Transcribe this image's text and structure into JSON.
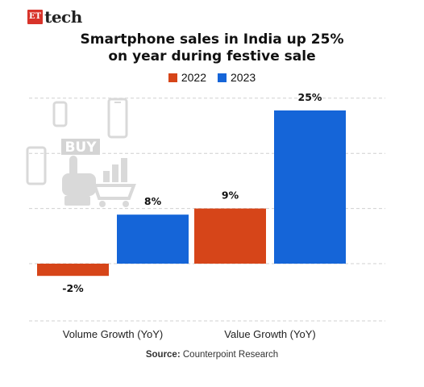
{
  "brand": {
    "badge": "ET",
    "name": "tech"
  },
  "title_line1": "Smartphone sales in India up 25%",
  "title_line2": "on year during festive sale",
  "source_label": "Source:",
  "source_text": "Counterpoint Research",
  "illustration": {
    "buy_text": "BUY"
  },
  "chart_data": {
    "type": "bar",
    "title": "Smartphone sales in India up 25% on year during festive sale",
    "categories": [
      "Volume Growth (YoY)",
      "Value Growth (YoY)"
    ],
    "series": [
      {
        "name": "2022",
        "values": [
          -2,
          9
        ],
        "color": "#d64519",
        "labels": [
          "-2%",
          "9%"
        ]
      },
      {
        "name": "2023",
        "values": [
          8,
          25
        ],
        "color": "#1565d8",
        "labels": [
          "8%",
          "25%"
        ]
      }
    ],
    "ylim": [
      -4,
      27
    ],
    "grid": true,
    "legend": "top-center"
  }
}
